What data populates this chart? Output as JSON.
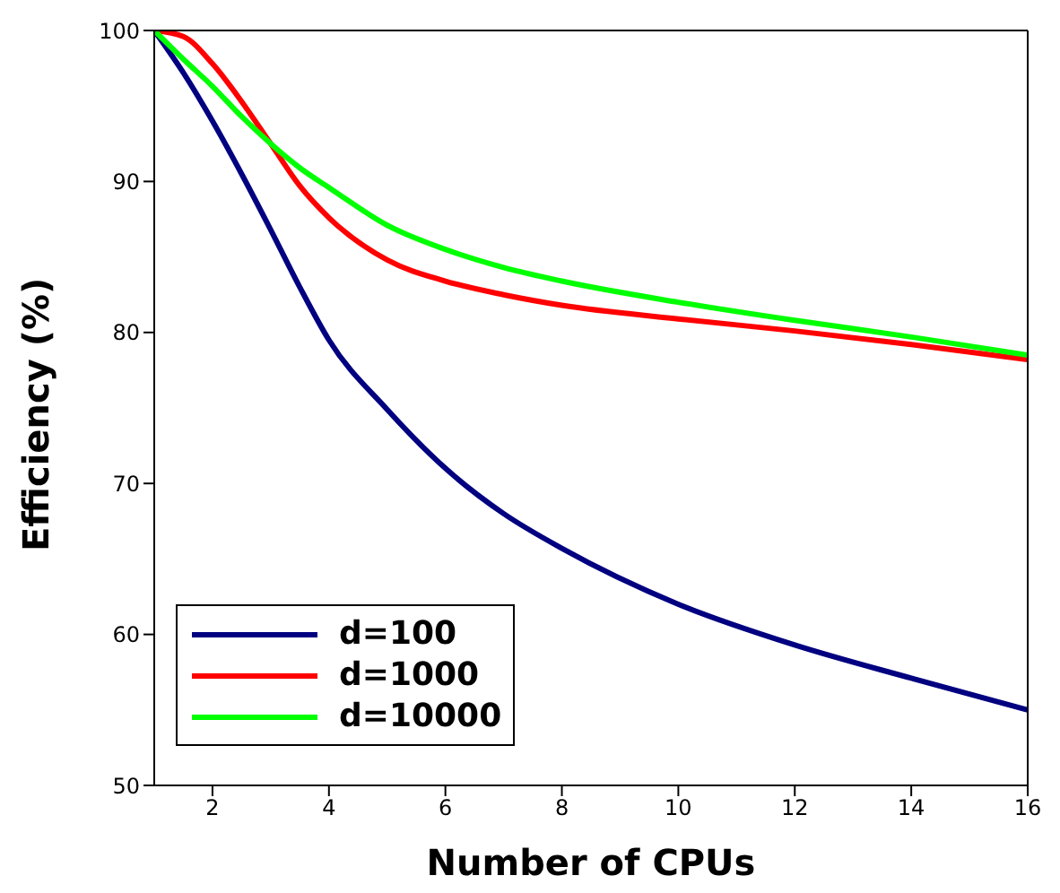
{
  "chart_data": {
    "type": "line",
    "xlabel": "Number of CPUs",
    "ylabel": "Efficiency (%)",
    "x": [
      1,
      1.5,
      2,
      2.5,
      3,
      3.5,
      4,
      5,
      6,
      7,
      8,
      10,
      12,
      14,
      16
    ],
    "series": [
      {
        "name": "d=100",
        "color": "#000080",
        "values": [
          100,
          97.2,
          94,
          90.5,
          86.8,
          83,
          79.5,
          74.9,
          71,
          68,
          65.7,
          62,
          59.3,
          57.1,
          55
        ]
      },
      {
        "name": "d=1000",
        "color": "#ff0000",
        "values": [
          100,
          99.6,
          97.8,
          95.3,
          92.5,
          89.7,
          87.6,
          84.8,
          83.4,
          82.5,
          81.8,
          80.9,
          80.1,
          79.2,
          78.2
        ]
      },
      {
        "name": "d=10000",
        "color": "#00ff00",
        "values": [
          100,
          98.1,
          96.3,
          94.3,
          92.5,
          90.9,
          89.6,
          87.1,
          85.5,
          84.3,
          83.4,
          82,
          80.8,
          79.7,
          78.5
        ]
      }
    ],
    "xlim": [
      1,
      16
    ],
    "xticks": [
      2,
      4,
      6,
      8,
      10,
      12,
      14,
      16
    ],
    "ylim": [
      50,
      100
    ],
    "yticks": [
      50,
      60,
      70,
      80,
      90,
      100
    ],
    "grid": false,
    "legend": "bottom left",
    "marker": "none",
    "line_style": "solid"
  }
}
